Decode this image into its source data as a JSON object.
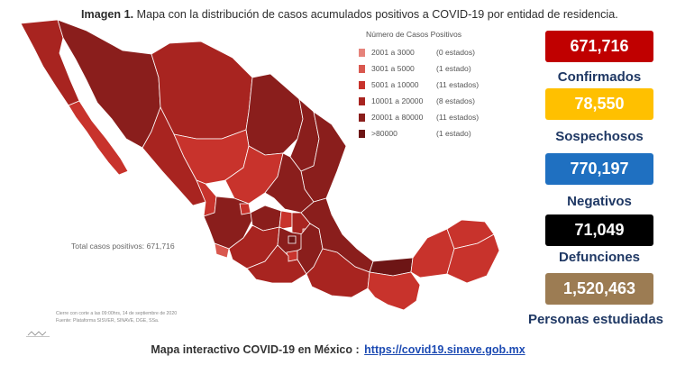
{
  "caption": {
    "label": "Imagen 1.",
    "text": "Mapa con la distribución de casos acumulados positivos a COVID-19 por entidad de residencia."
  },
  "legend": {
    "title": "Número de Casos Positivos",
    "items": [
      {
        "range": "2001 a    3000",
        "count": "(0 estados)",
        "color": "#e6837b"
      },
      {
        "range": "3001 a    5000",
        "count": "(1 estado)",
        "color": "#d9584f"
      },
      {
        "range": "5001 a  10000",
        "count": "(11 estados)",
        "color": "#c8332c"
      },
      {
        "range": "10001 a  20000",
        "count": "(8 estados)",
        "color": "#a82420"
      },
      {
        "range": "20001 a  80000",
        "count": "(11 estados)",
        "color": "#8a1e1c"
      },
      {
        "range": ">80000",
        "count": "(1 estado)",
        "color": "#6d1515"
      }
    ]
  },
  "map": {
    "total_label": "Total casos positivos: 671,716",
    "note_line1": "Cierre con corte a las 09:00hrs, 14 de septiembre de 2020",
    "note_line2": "Fuente: Plataforma SISVER, SINAVE, DGE, SSa."
  },
  "stats": [
    {
      "value": "671,716",
      "label": "Confirmados",
      "color": "#c00000",
      "text_color": "#ffffff"
    },
    {
      "value": "78,550",
      "label": "Sospechosos",
      "color": "#ffc000",
      "text_color": "#ffffff"
    },
    {
      "value": "770,197",
      "label": "Negativos",
      "color": "#1f70c1",
      "text_color": "#ffffff"
    },
    {
      "value": "71,049",
      "label": "Defunciones",
      "color": "#000000",
      "text_color": "#ffffff"
    },
    {
      "value": "1,520,463",
      "label": "Personas estudiadas",
      "color": "#9c7c53",
      "text_color": "#ffffff"
    }
  ],
  "footer": {
    "text": "Mapa interactivo COVID-19 en México :",
    "link": "https://covid19.sinave.gob.mx"
  }
}
